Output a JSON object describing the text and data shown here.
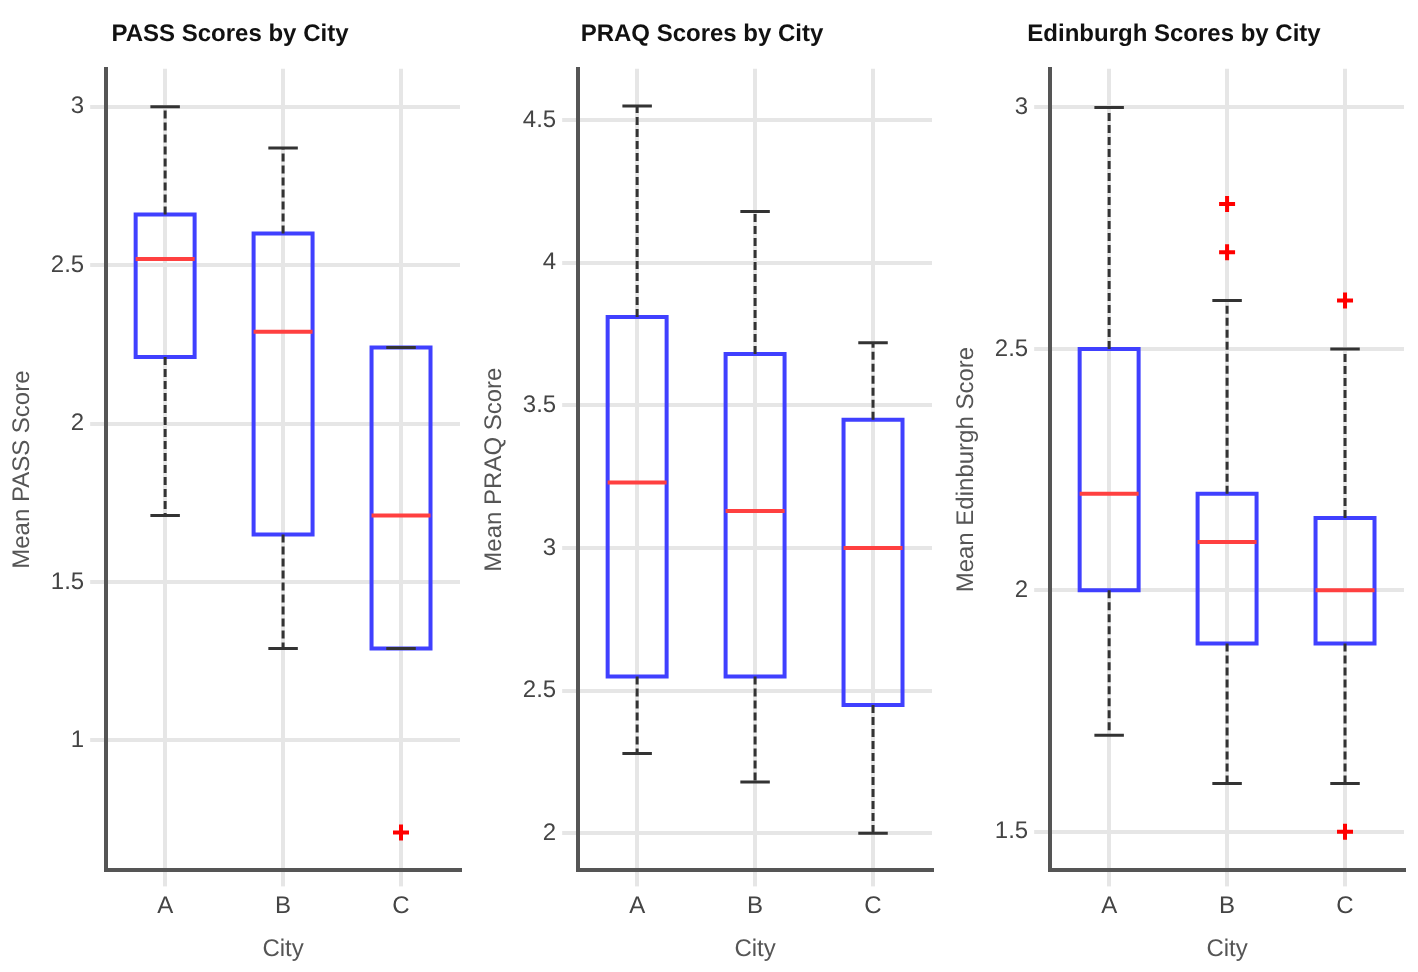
{
  "chart_data": [
    {
      "type": "box",
      "title": "PASS Scores by City",
      "xlabel": "City",
      "ylabel": "Mean PASS Score",
      "categories": [
        "A",
        "B",
        "C"
      ],
      "series": [
        {
          "color": "#4040ff",
          "boxes": [
            {
              "low": 1.71,
              "q1": 2.21,
              "median": 2.52,
              "q3": 2.66,
              "high": 3.0
            },
            {
              "low": 1.29,
              "q1": 1.65,
              "median": 2.29,
              "q3": 2.6,
              "high": 2.87
            },
            {
              "low": 1.29,
              "q1": 1.29,
              "median": 1.71,
              "q3": 2.24,
              "high": 2.24,
              "outliers": [
                0.71
              ]
            }
          ]
        }
      ],
      "ylim": [
        0.59,
        3.12
      ],
      "yticks": [
        1,
        1.5,
        2,
        2.5,
        3
      ],
      "grid": true
    },
    {
      "type": "box",
      "title": "PRAQ Scores by City",
      "xlabel": "City",
      "ylabel": "Mean PRAQ Score",
      "categories": [
        "A",
        "B",
        "C"
      ],
      "series": [
        {
          "color": "#4040ff",
          "boxes": [
            {
              "low": 2.28,
              "q1": 2.55,
              "median": 3.23,
              "q3": 3.81,
              "high": 4.55
            },
            {
              "low": 2.18,
              "q1": 2.55,
              "median": 3.13,
              "q3": 3.68,
              "high": 4.18
            },
            {
              "low": 2.0,
              "q1": 2.45,
              "median": 3.0,
              "q3": 3.45,
              "high": 3.72
            }
          ]
        }
      ],
      "ylim": [
        1.87,
        4.68
      ],
      "yticks": [
        2,
        2.5,
        3,
        3.5,
        4,
        4.5
      ],
      "grid": true
    },
    {
      "type": "box",
      "title": "Edinburgh Scores by City",
      "xlabel": "City",
      "ylabel": "Mean Edinburgh Score",
      "categories": [
        "A",
        "B",
        "C"
      ],
      "series": [
        {
          "color": "#4040ff",
          "boxes": [
            {
              "low": 1.7,
              "q1": 2.0,
              "median": 2.2,
              "q3": 2.5,
              "high": 3.0
            },
            {
              "low": 1.6,
              "q1": 1.89,
              "median": 2.1,
              "q3": 2.2,
              "high": 2.6,
              "outliers": [
                2.8,
                2.7
              ]
            },
            {
              "low": 1.6,
              "q1": 1.89,
              "median": 2.0,
              "q3": 2.15,
              "high": 2.5,
              "outliers": [
                2.6,
                1.5
              ]
            }
          ]
        }
      ],
      "ylim": [
        1.42,
        3.08
      ],
      "yticks": [
        1.5,
        2,
        2.5,
        3
      ],
      "grid": true
    }
  ]
}
